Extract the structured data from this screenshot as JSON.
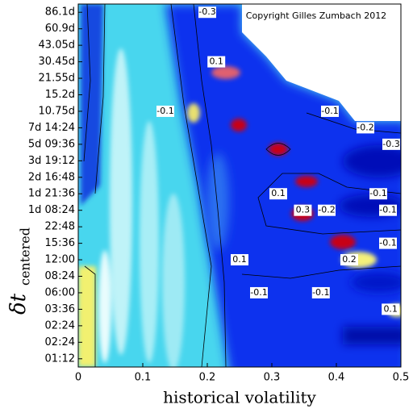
{
  "chart_data": {
    "type": "contour",
    "x_label": "historical volatility",
    "y_label": "δt",
    "y_label_subscript": "centered",
    "credit": "Copyright Gilles Zumbach 2012",
    "xlim": [
      0,
      0.5
    ],
    "xticks": [
      0,
      0.1,
      0.2,
      0.3,
      0.4,
      0.5
    ],
    "categories": [
      "01:12",
      "02:24",
      "02:24",
      "03:36",
      "06:00",
      "08:24",
      "12:00",
      "15:36",
      "22:48",
      "1d 08:24",
      "1d 21:36",
      "2d 16:48",
      "3d 19:12",
      "5d 09:36",
      "7d 14:24",
      "10.75d",
      "15.2d",
      "21.55d",
      "30.45d",
      "43.05d",
      "60.9d",
      "86.1d"
    ],
    "annotations": [
      {
        "text": "-0.3",
        "x": 0.2,
        "y": "86.1d"
      },
      {
        "text": "0.1",
        "x": 0.214,
        "y": "30.45d"
      },
      {
        "text": "-0.1",
        "x": 0.135,
        "y": "10.75d"
      },
      {
        "text": "-0.1",
        "x": 0.39,
        "y": "10.75d"
      },
      {
        "text": "-0.2",
        "x": 0.445,
        "y": "7d 14:24"
      },
      {
        "text": "-0.3",
        "x": 0.485,
        "y": "5d 09:36"
      },
      {
        "text": "0.1",
        "x": 0.31,
        "y": "1d 21:36"
      },
      {
        "text": "-0.1",
        "x": 0.465,
        "y": "1d 21:36"
      },
      {
        "text": "0.3",
        "x": 0.348,
        "y": "1d 08:24"
      },
      {
        "text": "-0.2",
        "x": 0.385,
        "y": "1d 08:24"
      },
      {
        "text": "-0.1",
        "x": 0.48,
        "y": "1d 08:24"
      },
      {
        "text": "-0.1",
        "x": 0.48,
        "y": "15:36"
      },
      {
        "text": "0.2",
        "x": 0.42,
        "y": "12:00"
      },
      {
        "text": "0.1",
        "x": 0.25,
        "y": "12:00"
      },
      {
        "text": "-0.1",
        "x": 0.28,
        "y": "06:00"
      },
      {
        "text": "-0.1",
        "x": 0.376,
        "y": "06:00"
      },
      {
        "text": "0.1",
        "x": 0.484,
        "y": "03:36"
      }
    ]
  }
}
